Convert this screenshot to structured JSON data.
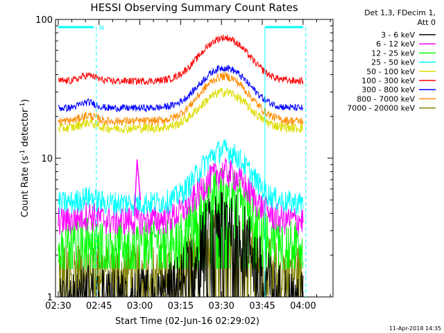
{
  "chart_data": {
    "type": "line",
    "title": "HESSI Observing Summary Count Rates",
    "xlabel": "Start Time (02-Jun-16 02:29:02)",
    "ylabel_main": "Count Rate (s",
    "ylabel_sup1": "-1",
    "ylabel_mid": " detector",
    "ylabel_sup2": "-1",
    "ylabel_end": ")",
    "ylog": true,
    "ylim": [
      1,
      100
    ],
    "xlim_minutes": [
      0,
      102
    ],
    "xticks": [
      {
        "label": "02:30",
        "t": 1
      },
      {
        "label": "02:45",
        "t": 16
      },
      {
        "label": "03:00",
        "t": 31
      },
      {
        "label": "03:15",
        "t": 46
      },
      {
        "label": "03:30",
        "t": 61
      },
      {
        "label": "03:45",
        "t": 76
      },
      {
        "label": "04:00",
        "t": 91
      }
    ],
    "yticks": [
      {
        "label": "1",
        "v": 1
      },
      {
        "label": "10",
        "v": 10
      },
      {
        "label": "100",
        "v": 100
      }
    ],
    "legend_header": [
      "Det 1,3, FDecim 1,",
      "Att 0"
    ],
    "legend_placement": "right",
    "series": [
      {
        "name": "3 - 6 keV",
        "color": "#000000",
        "base": 1.0,
        "peak": 4.0,
        "noise": 0.6,
        "floor": 1.0
      },
      {
        "name": "6 - 12 keV",
        "color": "#ff00ff",
        "base": 3.6,
        "peak": 8.0,
        "noise": 0.25,
        "floor": 2.8
      },
      {
        "name": "12 - 25 keV",
        "color": "#00ff00",
        "base": 2.6,
        "peak": 6.5,
        "noise": 0.35,
        "floor": 1.6
      },
      {
        "name": "25 - 50 keV",
        "color": "#00ffff",
        "base": 4.8,
        "peak": 11.5,
        "noise": 0.2,
        "floor": 3.5
      },
      {
        "name": "50 - 100 keV",
        "color": "#dddd00",
        "base": 16.5,
        "peak": 30.0,
        "noise": 0.08,
        "floor": 11.0
      },
      {
        "name": "100 - 300 keV",
        "color": "#ff0000",
        "base": 36.0,
        "peak": 74.0,
        "noise": 0.06,
        "floor": 28.0
      },
      {
        "name": "300 - 800 keV",
        "color": "#0000ff",
        "base": 23.0,
        "peak": 45.0,
        "noise": 0.06,
        "floor": 18.0
      },
      {
        "name": "800 - 7000 keV",
        "color": "#ff8c00",
        "base": 18.5,
        "peak": 39.0,
        "noise": 0.07,
        "floor": 14.0
      },
      {
        "name": "7000 - 20000 keV",
        "color": "#808000",
        "base": 1.6,
        "peak": 3.2,
        "noise": 0.5,
        "floor": 1.0
      }
    ],
    "flag_bar_label": "N",
    "flag_segments": [
      [
        0,
        14
      ],
      [
        76,
        91
      ]
    ],
    "flag_value": 88,
    "flag_color": "#00ffff",
    "vlines": [
      {
        "t": 14,
        "style": "dashed"
      },
      {
        "t": 76,
        "style": "solid"
      },
      {
        "t": 91,
        "style": "dashed"
      }
    ],
    "annotation_spike": {
      "t": 30,
      "value": 9.8
    },
    "grid": false
  },
  "footer": {
    "timestamp": "11-Apr-2018 14:35"
  }
}
